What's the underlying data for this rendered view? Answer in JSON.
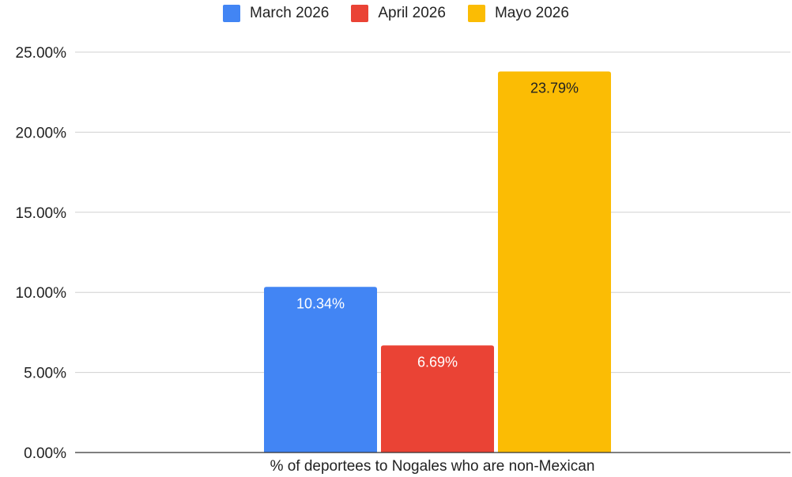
{
  "chart_data": {
    "type": "bar",
    "categories": [
      "% of deportees to Nogales who are non-Mexican"
    ],
    "series": [
      {
        "name": "March 2026",
        "values": [
          10.34
        ],
        "color": "#4285F4",
        "label": "10.34%",
        "label_color": "#ffffff"
      },
      {
        "name": "April 2026",
        "values": [
          6.69
        ],
        "color": "#EA4335",
        "label": "6.69%",
        "label_color": "#ffffff"
      },
      {
        "name": "Mayo 2026",
        "values": [
          23.79
        ],
        "color": "#FBBC04",
        "label": "23.79%",
        "label_color": "#222222"
      }
    ],
    "ylim": [
      0,
      25
    ],
    "yticks": [
      {
        "value": 0,
        "label": "0.00%"
      },
      {
        "value": 5,
        "label": "5.00%"
      },
      {
        "value": 10,
        "label": "10.00%"
      },
      {
        "value": 15,
        "label": "15.00%"
      },
      {
        "value": 20,
        "label": "20.00%"
      },
      {
        "value": 25,
        "label": "25.00%"
      }
    ],
    "title": "",
    "xlabel": "",
    "ylabel": "",
    "grid": true,
    "legend_position": "top"
  }
}
